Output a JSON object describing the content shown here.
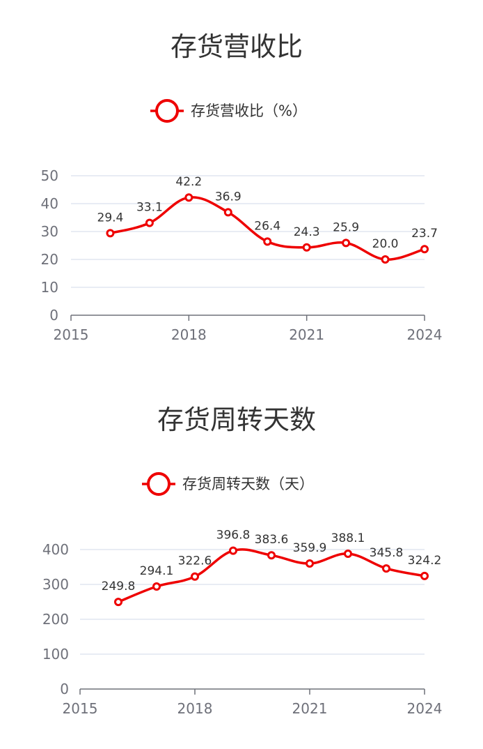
{
  "colors": {
    "series": "#ee0000",
    "grid": "#e0e6f1",
    "axis": "#6e7079"
  },
  "legend_icon": "circle-line-icon",
  "chart_data": [
    {
      "type": "line",
      "title": "存货营收比",
      "legend": "存货营收比（%）",
      "series": [
        {
          "name": "存货营收比（%）",
          "x": [
            2016,
            2017,
            2018,
            2019,
            2020,
            2021,
            2022,
            2023,
            2024
          ],
          "values": [
            29.4,
            33.1,
            42.2,
            36.9,
            26.4,
            24.3,
            25.9,
            20.0,
            23.7
          ],
          "labels": [
            "29.4",
            "33.1",
            "42.2",
            "36.9",
            "26.4",
            "24.3",
            "25.9",
            "20.0",
            "23.7"
          ]
        }
      ],
      "xlim": [
        2015,
        2024
      ],
      "x_ticks": [
        "2015",
        "2018",
        "2021",
        "2024"
      ],
      "ylim": [
        0,
        50
      ],
      "y_ticks": [
        "0",
        "10",
        "20",
        "30",
        "40",
        "50"
      ],
      "grid": true,
      "legend_position": "top-center",
      "smooth": true
    },
    {
      "type": "line",
      "title": "存货周转天数",
      "legend": "存货周转天数（天）",
      "series": [
        {
          "name": "存货周转天数（天）",
          "x": [
            2016,
            2017,
            2018,
            2019,
            2020,
            2021,
            2022,
            2023,
            2024
          ],
          "values": [
            249.8,
            294.1,
            322.6,
            396.8,
            383.6,
            359.9,
            388.1,
            345.8,
            324.2
          ],
          "labels": [
            "249.8",
            "294.1",
            "322.6",
            "396.8",
            "383.6",
            "359.9",
            "388.1",
            "345.8",
            "324.2"
          ]
        }
      ],
      "xlim": [
        2015,
        2024
      ],
      "x_ticks": [
        "2015",
        "2018",
        "2021",
        "2024"
      ],
      "ylim": [
        0,
        400
      ],
      "y_ticks": [
        "0",
        "100",
        "200",
        "300",
        "400"
      ],
      "grid": true,
      "legend_position": "top-center",
      "smooth": true
    }
  ]
}
